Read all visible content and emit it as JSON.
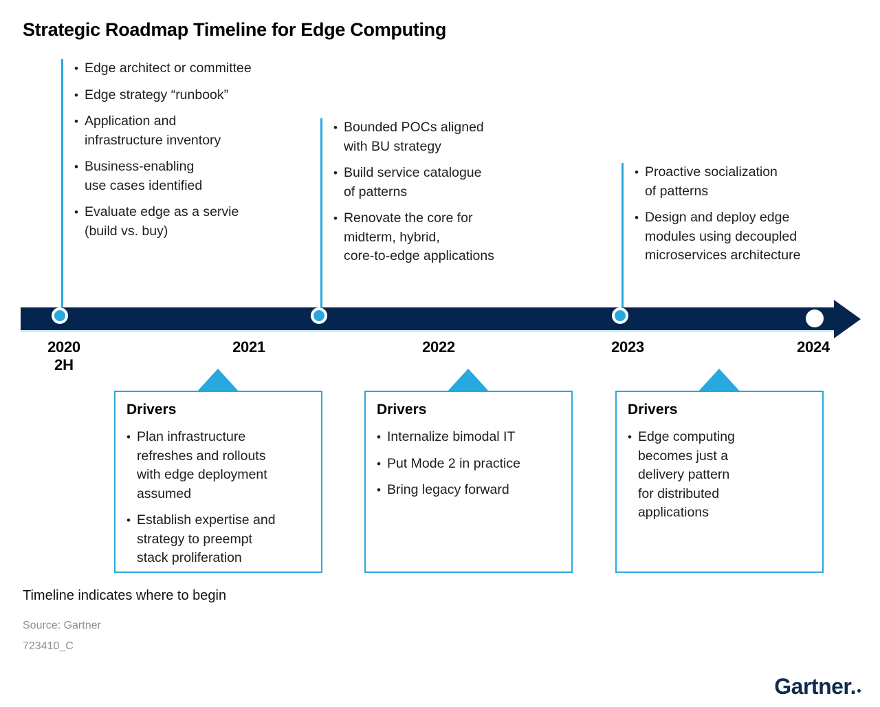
{
  "title": "Strategic Roadmap Timeline for Edge Computing",
  "milestone_lists": {
    "m2020": {
      "items": [
        "Edge architect or committee",
        "Edge strategy “runbook”",
        "Application and\ninfrastructure inventory",
        "Business-enabling\nuse cases identified",
        "Evaluate edge as a servie\n(build vs. buy)"
      ]
    },
    "m2021": {
      "items": [
        "Bounded POCs aligned\nwith BU strategy",
        "Build service catalogue\nof patterns",
        "Renovate the core for\nmidterm, hybrid,\ncore-to-edge applications"
      ]
    },
    "m2023": {
      "items": [
        "Proactive socialization\nof patterns",
        "Design and deploy edge\nmodules using decoupled\nmicroservices architecture"
      ]
    }
  },
  "timeline": {
    "years": [
      "2020",
      "2021",
      "2022",
      "2023",
      "2024"
    ],
    "half_label": "2H"
  },
  "driver_boxes": [
    {
      "title": "Drivers",
      "items": [
        "Plan infrastructure\nrefreshes and rollouts\nwith edge deployment\nassumed",
        "Establish expertise and\nstrategy to preempt\nstack proliferation"
      ]
    },
    {
      "title": "Drivers",
      "items": [
        "Internalize bimodal IT",
        "Put Mode 2 in practice",
        "Bring legacy forward"
      ]
    },
    {
      "title": "Drivers",
      "items": [
        "Edge computing\nbecomes just a\ndelivery pattern\nfor distributed\napplications"
      ]
    }
  ],
  "footer": {
    "note": "Timeline indicates where to begin",
    "source": "Source: Gartner",
    "doc_code": "723410_C",
    "logo": "Gartner."
  },
  "colors": {
    "navy": "#06254e",
    "accent_blue": "#29a8e0",
    "pale_blue": "#cfe9f7",
    "footer_gray": "#8f8f8f"
  }
}
